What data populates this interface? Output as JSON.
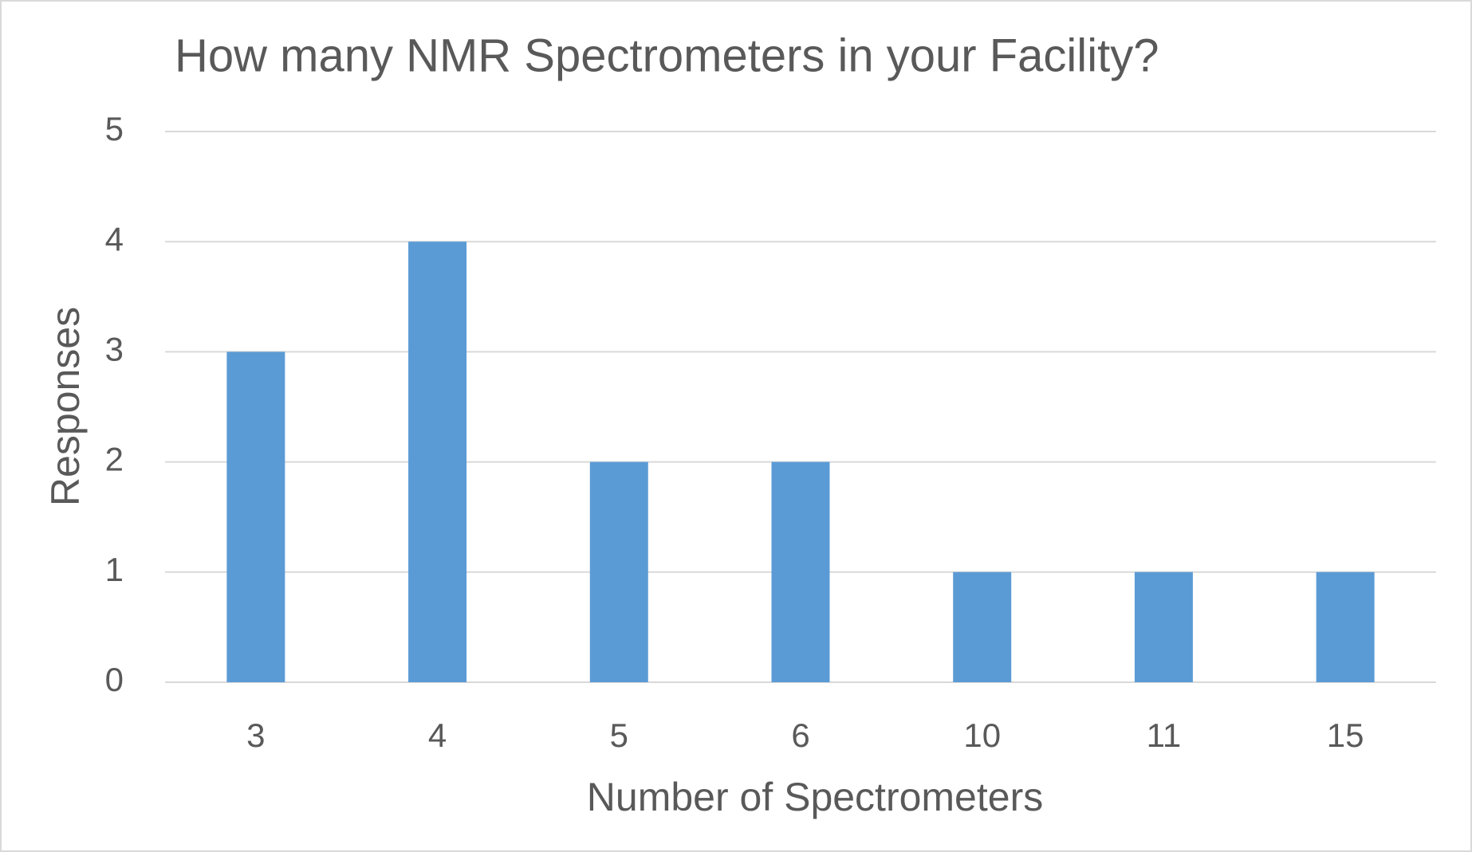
{
  "chart_data": {
    "type": "bar",
    "title": "How many NMR Spectrometers in your Facility?",
    "xlabel": "Number of Spectrometers",
    "ylabel": "Responses",
    "categories": [
      "3",
      "4",
      "5",
      "6",
      "10",
      "11",
      "15"
    ],
    "values": [
      3,
      4,
      2,
      2,
      1,
      1,
      1
    ],
    "color": "#5b9bd5",
    "ylim": [
      0,
      5
    ],
    "yticks": [
      0,
      1,
      2,
      3,
      4,
      5
    ],
    "grid": true
  }
}
